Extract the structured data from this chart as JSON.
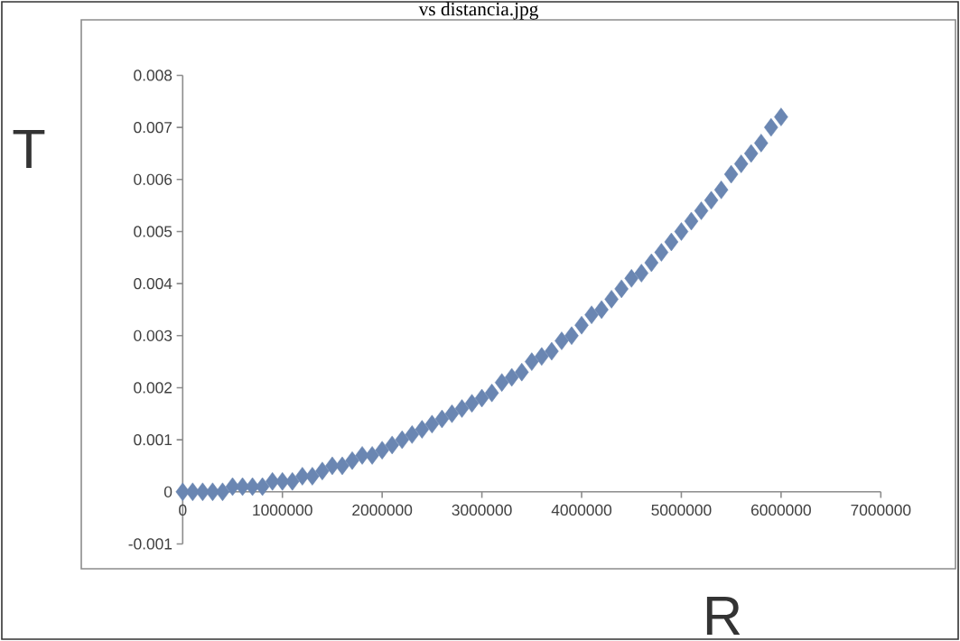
{
  "chart_data": {
    "type": "scatter",
    "title": "vs distancia.jpg",
    "xlabel": "R",
    "ylabel": "T",
    "x": [
      0,
      100000,
      200000,
      300000,
      400000,
      500000,
      600000,
      700000,
      800000,
      900000,
      1000000,
      1100000,
      1200000,
      1300000,
      1400000,
      1500000,
      1600000,
      1700000,
      1800000,
      1900000,
      2000000,
      2100000,
      2200000,
      2300000,
      2400000,
      2500000,
      2600000,
      2700000,
      2800000,
      2900000,
      3000000,
      3100000,
      3200000,
      3300000,
      3400000,
      3500000,
      3600000,
      3700000,
      3800000,
      3900000,
      4000000,
      4100000,
      4200000,
      4300000,
      4400000,
      4500000,
      4600000,
      4700000,
      4800000,
      4900000,
      5000000,
      5100000,
      5200000,
      5300000,
      5400000,
      5500000,
      5600000,
      5700000,
      5800000,
      5900000,
      6000000
    ],
    "series": [
      {
        "color": "#6a86b2",
        "values": [
          0,
          0,
          0,
          0,
          0,
          0.0001,
          0.0001,
          0.0001,
          0.0001,
          0.0002,
          0.0002,
          0.0002,
          0.0003,
          0.0003,
          0.0004,
          0.0005,
          0.0005,
          0.0006,
          0.0007,
          0.0007,
          0.0008,
          0.0009,
          0.001,
          0.0011,
          0.0012,
          0.0013,
          0.0014,
          0.0015,
          0.0016,
          0.0017,
          0.0018,
          0.0019,
          0.0021,
          0.0022,
          0.0023,
          0.0025,
          0.0026,
          0.0027,
          0.0029,
          0.003,
          0.0032,
          0.0034,
          0.0035,
          0.0037,
          0.0039,
          0.0041,
          0.0042,
          0.0044,
          0.0046,
          0.0048,
          0.005,
          0.0052,
          0.0054,
          0.0056,
          0.0058,
          0.0061,
          0.0063,
          0.0065,
          0.0067,
          0.007,
          0.0072
        ]
      }
    ],
    "xlim": [
      0,
      7000000
    ],
    "ylim": [
      -0.001,
      0.008
    ],
    "xticks": [
      0,
      1000000,
      2000000,
      3000000,
      4000000,
      5000000,
      6000000,
      7000000
    ],
    "yticks": [
      -0.001,
      0,
      0.001,
      0.002,
      0.003,
      0.004,
      0.005,
      0.006,
      0.007,
      0.008
    ],
    "marker": "diamond"
  }
}
